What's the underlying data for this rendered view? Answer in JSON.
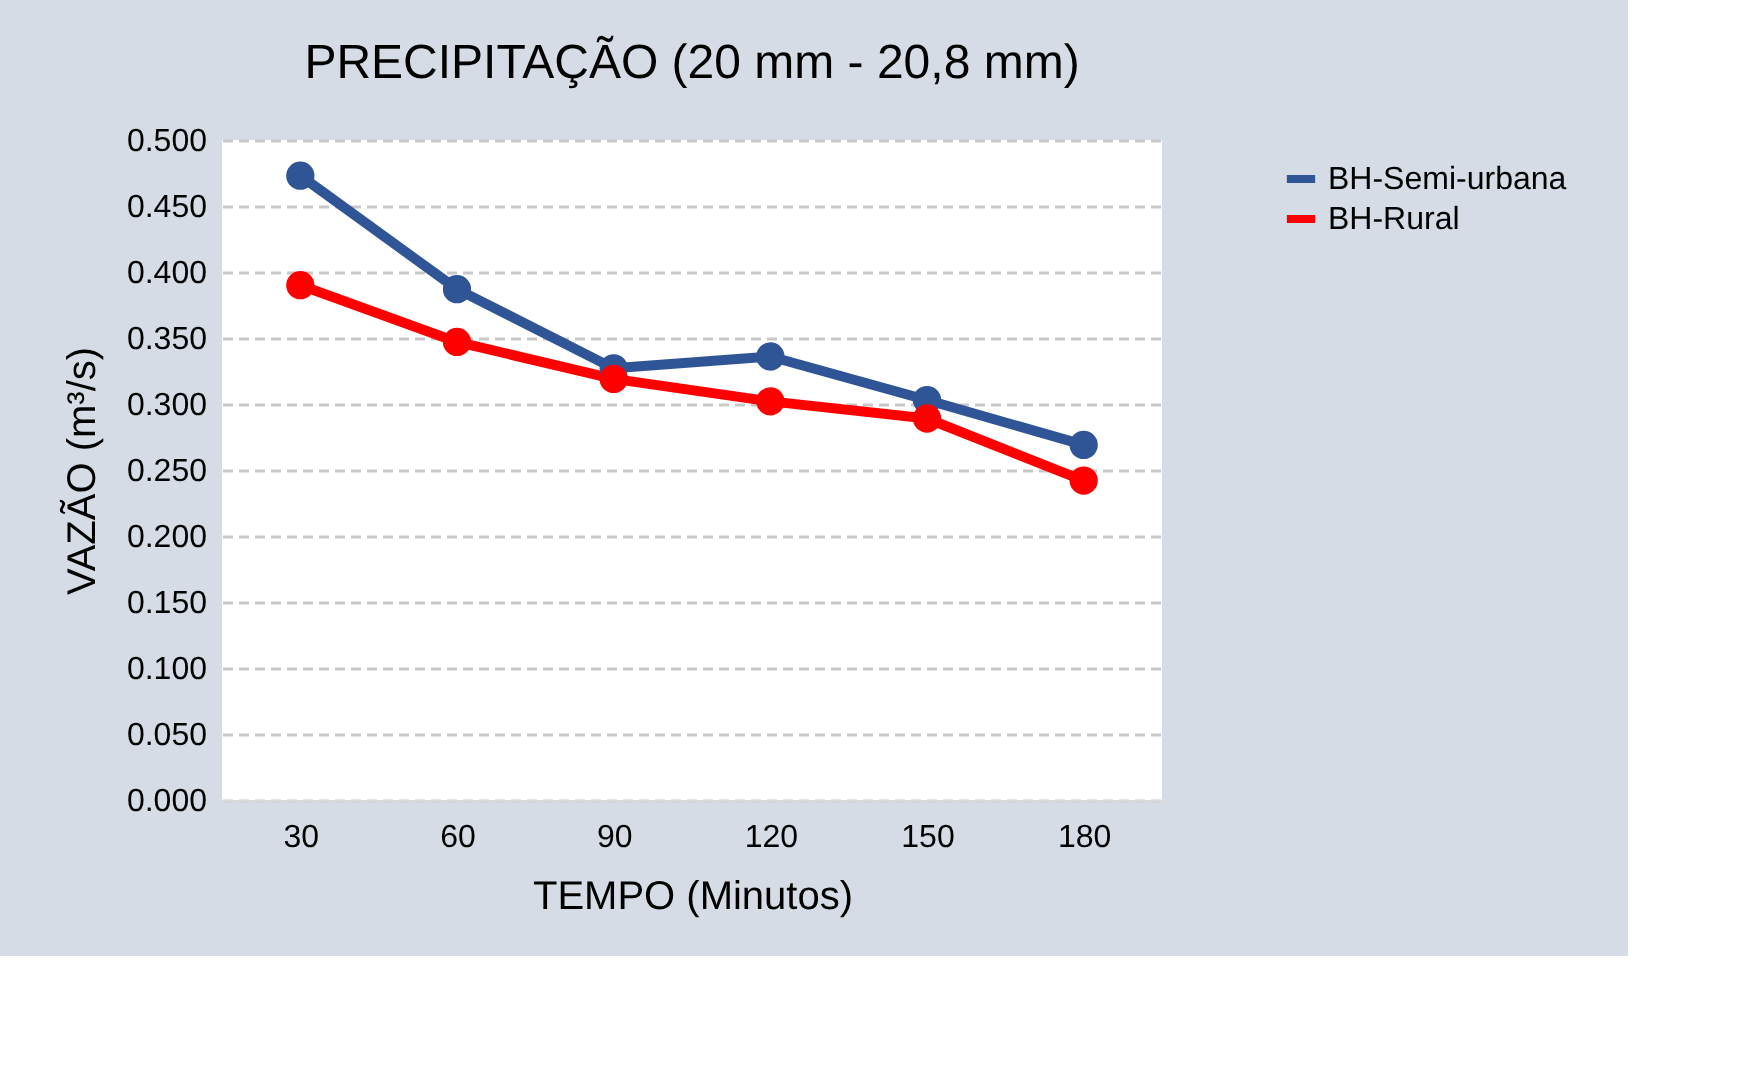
{
  "chart_data": {
    "type": "line",
    "title": "PRECIPITAÇÃO (20 mm - 20,8 mm)",
    "xlabel": "TEMPO (Minutos)",
    "ylabel": "VAZÃO (m³/s)",
    "categories": [
      "30",
      "60",
      "90",
      "120",
      "150",
      "180"
    ],
    "series": [
      {
        "name": "BH-Semi-urbana",
        "color": "#2f5597",
        "values": [
          0.473,
          0.387,
          0.327,
          0.336,
          0.303,
          0.269
        ]
      },
      {
        "name": "BH-Rural",
        "color": "#ff0000",
        "values": [
          0.39,
          0.347,
          0.319,
          0.302,
          0.289,
          0.242
        ]
      }
    ],
    "ylim": [
      0,
      0.5
    ],
    "yticks": [
      {
        "value": 0,
        "label": "0.000"
      },
      {
        "value": 0.05,
        "label": "0.050"
      },
      {
        "value": 0.1,
        "label": "0.100"
      },
      {
        "value": 0.15,
        "label": "0.150"
      },
      {
        "value": 0.2,
        "label": "0.200"
      },
      {
        "value": 0.25,
        "label": "0.250"
      },
      {
        "value": 0.3,
        "label": "0.300"
      },
      {
        "value": 0.35,
        "label": "0.350"
      },
      {
        "value": 0.4,
        "label": "0.400"
      },
      {
        "value": 0.45,
        "label": "0.450"
      },
      {
        "value": 0.5,
        "label": "0.500"
      }
    ],
    "grid": "y",
    "legend": "right",
    "marker": "circle",
    "line_style": "solid"
  }
}
